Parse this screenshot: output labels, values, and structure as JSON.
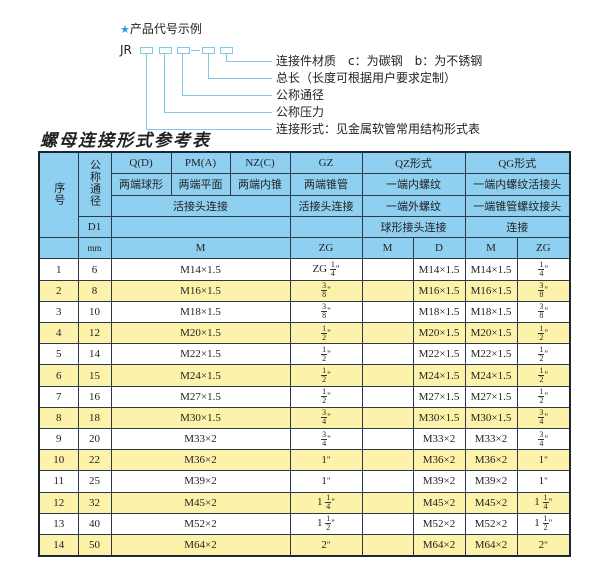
{
  "example": {
    "heading": "产品代号示例",
    "code_prefix": "JR",
    "code_separator": "-",
    "labels": [
      "连接件材质　c：为碳钢　b：为不锈钢",
      "总长（长度可根据用户要求定制）",
      "公称通径",
      "公称压力",
      "连接形式：见金属软管常用结构形式表"
    ]
  },
  "table_title": "螺母连接形式参考表",
  "header": {
    "seq": "序号",
    "nominal": "公称通径",
    "qd": "Q(D)",
    "pm": "PM(A)",
    "nz": "NZ(C)",
    "gz": "GZ",
    "qz": "QZ形式",
    "qg": "QG形式",
    "qd_desc": "两端球形",
    "pm_desc": "两端平面",
    "nz_desc": "两端内锥",
    "gz_desc": "两端锥管",
    "qz_desc1": "一端内螺纹",
    "qg_desc1": "一端内螺纹活接头",
    "live_joint": "活接头连接",
    "gz_desc2": "活接头连接",
    "qz_desc2": "一端外螺纹",
    "qg_desc2": "一端锥管螺纹接头",
    "d1": "D1",
    "qz_desc3": "球形接头连接",
    "qg_desc3": "连接",
    "mm": "mm",
    "m": "M",
    "zg": "ZG",
    "qz_m": "M",
    "qz_d": "D",
    "qg_m": "M",
    "qg_zg": "ZG"
  },
  "rows": [
    {
      "no": "1",
      "dn": "6",
      "m": "M14×1.5",
      "zg": {
        "pre": "ZG",
        "num": "1",
        "den": "4"
      },
      "qg_zg": {
        "pre": "",
        "num": "1",
        "den": "4"
      }
    },
    {
      "no": "2",
      "dn": "8",
      "m": "M16×1.5",
      "zg": {
        "pre": "",
        "num": "3",
        "den": "8"
      },
      "qg_zg": {
        "pre": "",
        "num": "3",
        "den": "8"
      }
    },
    {
      "no": "3",
      "dn": "10",
      "m": "M18×1.5",
      "zg": {
        "pre": "",
        "num": "3",
        "den": "8"
      },
      "qg_zg": {
        "pre": "",
        "num": "3",
        "den": "8"
      }
    },
    {
      "no": "4",
      "dn": "12",
      "m": "M20×1.5",
      "zg": {
        "pre": "",
        "num": "1",
        "den": "2"
      },
      "qg_zg": {
        "pre": "",
        "num": "1",
        "den": "2"
      }
    },
    {
      "no": "5",
      "dn": "14",
      "m": "M22×1.5",
      "zg": {
        "pre": "",
        "num": "1",
        "den": "2"
      },
      "qg_zg": {
        "pre": "",
        "num": "1",
        "den": "2"
      }
    },
    {
      "no": "6",
      "dn": "15",
      "m": "M24×1.5",
      "zg": {
        "pre": "",
        "num": "1",
        "den": "2"
      },
      "qg_zg": {
        "pre": "",
        "num": "1",
        "den": "2"
      }
    },
    {
      "no": "7",
      "dn": "16",
      "m": "M27×1.5",
      "zg": {
        "pre": "",
        "num": "1",
        "den": "2"
      },
      "qg_zg": {
        "pre": "",
        "num": "1",
        "den": "2"
      }
    },
    {
      "no": "8",
      "dn": "18",
      "m": "M30×1.5",
      "zg": {
        "pre": "",
        "num": "3",
        "den": "4"
      },
      "qg_zg": {
        "pre": "",
        "num": "3",
        "den": "4"
      }
    },
    {
      "no": "9",
      "dn": "20",
      "m": "M33×2",
      "zg": {
        "pre": "",
        "num": "3",
        "den": "4"
      },
      "qg_zg": {
        "pre": "",
        "num": "3",
        "den": "4"
      }
    },
    {
      "no": "10",
      "dn": "22",
      "m": "M36×2",
      "zg": {
        "pre": "1",
        "num": "",
        "den": ""
      },
      "qg_zg": {
        "pre": "1",
        "num": "",
        "den": ""
      }
    },
    {
      "no": "11",
      "dn": "25",
      "m": "M39×2",
      "zg": {
        "pre": "1",
        "num": "",
        "den": ""
      },
      "qg_zg": {
        "pre": "1",
        "num": "",
        "den": ""
      }
    },
    {
      "no": "12",
      "dn": "32",
      "m": "M45×2",
      "zg": {
        "pre": "1",
        "num": "1",
        "den": "4"
      },
      "qg_zg": {
        "pre": "1",
        "num": "1",
        "den": "4"
      }
    },
    {
      "no": "13",
      "dn": "40",
      "m": "M52×2",
      "zg": {
        "pre": "1",
        "num": "1",
        "den": "2"
      },
      "qg_zg": {
        "pre": "1",
        "num": "1",
        "den": "2"
      }
    },
    {
      "no": "14",
      "dn": "50",
      "m": "M64×2",
      "zg": {
        "pre": "2",
        "num": "",
        "den": ""
      },
      "qg_zg": {
        "pre": "2",
        "num": "",
        "den": ""
      }
    }
  ],
  "inch_mark": "\"",
  "colors": {
    "header_bg": "#8fd0f1",
    "row_alt": "#fdf2a9",
    "leader": "#7fcbe6",
    "star": "#2a9fd8"
  }
}
